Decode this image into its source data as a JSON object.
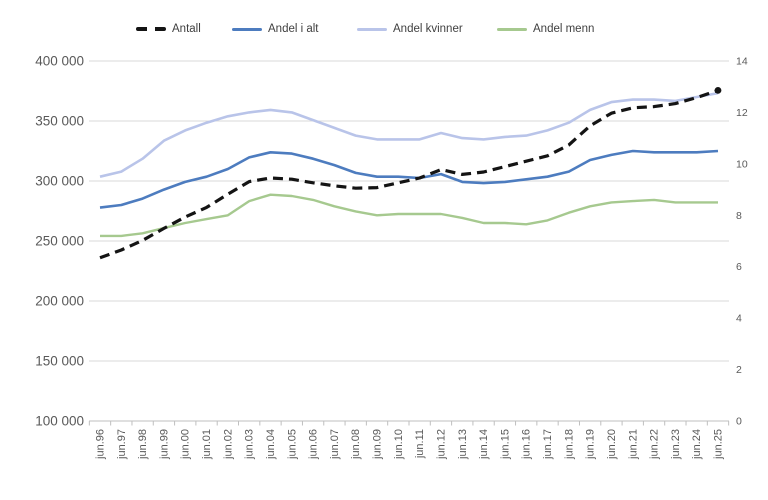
{
  "background": "#ffffff",
  "chart_data": {
    "type": "line",
    "title": "",
    "legend_position": "top",
    "grid": true,
    "categories": [
      "jun.96",
      "jun.97",
      "jun.98",
      "jun.99",
      "jun.00",
      "jun.01",
      "jun.02",
      "jun.03",
      "jun.04",
      "jun.05",
      "jun.06",
      "jun.07",
      "jun.08",
      "jun.09",
      "jun.10",
      "jun.11",
      "jun.12",
      "jun.13",
      "jun.14",
      "jun.15",
      "jun.16",
      "jun.17",
      "jun.18",
      "jun.19",
      "jun.20",
      "jun.21",
      "jun.22",
      "jun.23",
      "jun.24",
      "jun.25"
    ],
    "left_axis": {
      "min": 100000,
      "max": 400000,
      "tick_step": 50000,
      "tick_labels": [
        "100 000",
        "150 000",
        "200 000",
        "250 000",
        "300 000",
        "350 000",
        "400 000"
      ]
    },
    "right_axis": {
      "min": 0,
      "max": 14,
      "tick_step": 2,
      "tick_labels": [
        "0",
        "2",
        "4",
        "6",
        "8",
        "10",
        "12",
        "14"
      ]
    },
    "series": [
      {
        "name": "Antall",
        "axis": "left",
        "color": "#141414",
        "style": "dashed",
        "end_dot": true,
        "values": [
          236000,
          242500,
          250500,
          260500,
          270000,
          278000,
          289000,
          299500,
          302500,
          301500,
          298500,
          296000,
          294000,
          294500,
          298500,
          302500,
          309500,
          305500,
          307500,
          312000,
          316500,
          321000,
          330000,
          346000,
          356500,
          361000,
          362000,
          364500,
          369500,
          375500
        ]
      },
      {
        "name": "Andel i alt",
        "axis": "right",
        "color": "#4d7cbf",
        "style": "solid",
        "end_dot": false,
        "values": [
          8.3,
          8.4,
          8.65,
          9.0,
          9.3,
          9.5,
          9.8,
          10.25,
          10.45,
          10.4,
          10.2,
          9.95,
          9.65,
          9.5,
          9.5,
          9.45,
          9.6,
          9.3,
          9.25,
          9.3,
          9.4,
          9.5,
          9.7,
          10.15,
          10.35,
          10.5,
          10.45,
          10.45,
          10.45,
          10.5
        ]
      },
      {
        "name": "Andel kvinner",
        "axis": "right",
        "color": "#b9c4e9",
        "style": "solid",
        "end_dot": false,
        "values": [
          9.5,
          9.7,
          10.2,
          10.9,
          11.3,
          11.6,
          11.85,
          12.0,
          12.1,
          12.0,
          11.7,
          11.4,
          11.1,
          10.95,
          10.95,
          10.95,
          11.2,
          11.0,
          10.95,
          11.05,
          11.1,
          11.3,
          11.6,
          12.1,
          12.4,
          12.5,
          12.5,
          12.45,
          12.6,
          12.75
        ]
      },
      {
        "name": "Andel menn",
        "axis": "right",
        "color": "#a6c98f",
        "style": "solid",
        "end_dot": false,
        "values": [
          7.2,
          7.2,
          7.3,
          7.5,
          7.7,
          7.85,
          8.0,
          8.55,
          8.8,
          8.75,
          8.6,
          8.35,
          8.15,
          8.0,
          8.05,
          8.05,
          8.05,
          7.9,
          7.7,
          7.7,
          7.65,
          7.8,
          8.1,
          8.35,
          8.5,
          8.55,
          8.6,
          8.5,
          8.5,
          8.5
        ]
      }
    ],
    "colors": {
      "gridline": "#d9d9d9",
      "axis_line": "#bfbfbf",
      "axis_label": "#595959"
    }
  }
}
